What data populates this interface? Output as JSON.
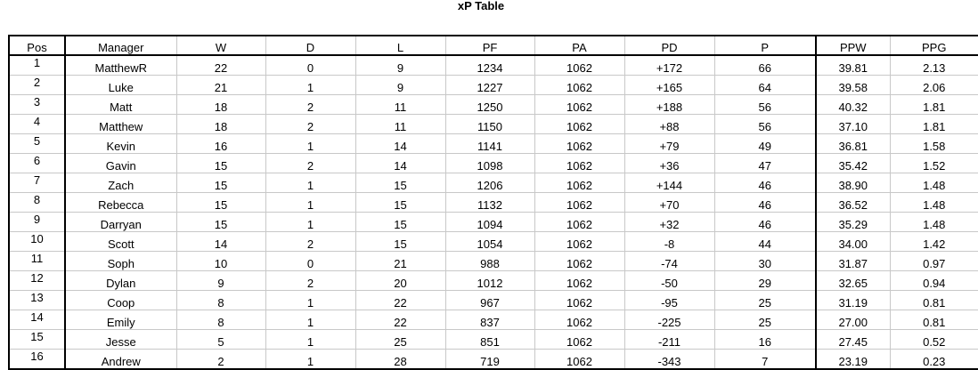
{
  "title": "xP Table",
  "columns": [
    "Pos",
    "Manager",
    "W",
    "D",
    "L",
    "PF",
    "PA",
    "PD",
    "P",
    "PPW",
    "PPG"
  ],
  "rows": [
    [
      "1",
      "MatthewR",
      "22",
      "0",
      "9",
      "1234",
      "1062",
      "+172",
      "66",
      "39.81",
      "2.13"
    ],
    [
      "2",
      "Luke",
      "21",
      "1",
      "9",
      "1227",
      "1062",
      "+165",
      "64",
      "39.58",
      "2.06"
    ],
    [
      "3",
      "Matt",
      "18",
      "2",
      "11",
      "1250",
      "1062",
      "+188",
      "56",
      "40.32",
      "1.81"
    ],
    [
      "4",
      "Matthew",
      "18",
      "2",
      "11",
      "1150",
      "1062",
      "+88",
      "56",
      "37.10",
      "1.81"
    ],
    [
      "5",
      "Kevin",
      "16",
      "1",
      "14",
      "1141",
      "1062",
      "+79",
      "49",
      "36.81",
      "1.58"
    ],
    [
      "6",
      "Gavin",
      "15",
      "2",
      "14",
      "1098",
      "1062",
      "+36",
      "47",
      "35.42",
      "1.52"
    ],
    [
      "7",
      "Zach",
      "15",
      "1",
      "15",
      "1206",
      "1062",
      "+144",
      "46",
      "38.90",
      "1.48"
    ],
    [
      "8",
      "Rebecca",
      "15",
      "1",
      "15",
      "1132",
      "1062",
      "+70",
      "46",
      "36.52",
      "1.48"
    ],
    [
      "9",
      "Darryan",
      "15",
      "1",
      "15",
      "1094",
      "1062",
      "+32",
      "46",
      "35.29",
      "1.48"
    ],
    [
      "10",
      "Scott",
      "14",
      "2",
      "15",
      "1054",
      "1062",
      "-8",
      "44",
      "34.00",
      "1.42"
    ],
    [
      "11",
      "Soph",
      "10",
      "0",
      "21",
      "988",
      "1062",
      "-74",
      "30",
      "31.87",
      "0.97"
    ],
    [
      "12",
      "Dylan",
      "9",
      "2",
      "20",
      "1012",
      "1062",
      "-50",
      "29",
      "32.65",
      "0.94"
    ],
    [
      "13",
      "Coop",
      "8",
      "1",
      "22",
      "967",
      "1062",
      "-95",
      "25",
      "31.19",
      "0.81"
    ],
    [
      "14",
      "Emily",
      "8",
      "1",
      "22",
      "837",
      "1062",
      "-225",
      "25",
      "27.00",
      "0.81"
    ],
    [
      "15",
      "Jesse",
      "5",
      "1",
      "25",
      "851",
      "1062",
      "-211",
      "16",
      "27.45",
      "0.52"
    ],
    [
      "16",
      "Andrew",
      "2",
      "1",
      "28",
      "719",
      "1062",
      "-343",
      "7",
      "23.19",
      "0.23"
    ]
  ]
}
